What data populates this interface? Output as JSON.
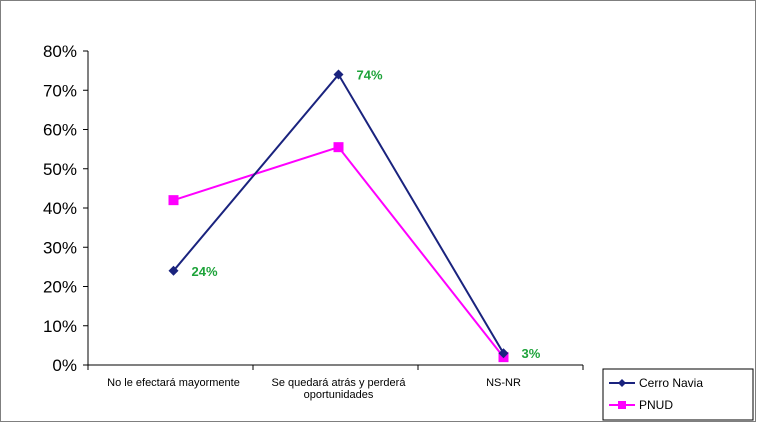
{
  "chart_data": {
    "type": "line",
    "title": "",
    "xlabel": "",
    "ylabel": "",
    "categories": [
      [
        "No le efectará mayormente"
      ],
      [
        "Se quedará atrás y perderá",
        "oportunidades"
      ],
      [
        "NS-NR"
      ]
    ],
    "y_ticks": [
      "0%",
      "10%",
      "20%",
      "30%",
      "40%",
      "50%",
      "60%",
      "70%",
      "80%"
    ],
    "ylim": [
      0,
      80
    ],
    "grid": false,
    "legend_position": "bottom-right",
    "series": [
      {
        "name": "Cerro Navia",
        "values": [
          24,
          74,
          3
        ],
        "color": "#1a237e",
        "marker": "diamond",
        "data_labels": [
          "24%",
          "74%",
          "3%"
        ],
        "label_color": "#1ea33a"
      },
      {
        "name": "PNUD",
        "values": [
          42,
          55.5,
          2
        ],
        "color": "#ff00ff",
        "marker": "square"
      }
    ]
  }
}
